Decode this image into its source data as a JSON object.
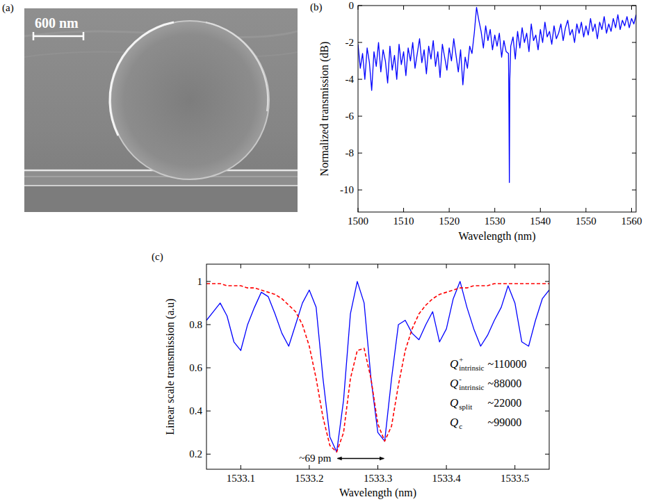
{
  "image": {
    "panel_label": "(a)",
    "scale_bar": "600 nm"
  },
  "chart_data": [
    {
      "type": "line",
      "panel_label": "(b)",
      "x_label": "Wavelength (nm)",
      "y_label": "Normalized transmission (dB)",
      "xlim": [
        1500,
        1561
      ],
      "ylim": [
        -11.2,
        0
      ],
      "xticks": [
        1500,
        1510,
        1520,
        1530,
        1540,
        1550,
        1560
      ],
      "yticks": [
        -10,
        -8,
        -6,
        -4,
        -2,
        0
      ],
      "grid": false,
      "x": [
        1500,
        1500.5,
        1501,
        1501.5,
        1502,
        1502.5,
        1503,
        1503.5,
        1504,
        1504.5,
        1505,
        1505.5,
        1506,
        1506.5,
        1507,
        1507.5,
        1508,
        1508.5,
        1509,
        1509.5,
        1510,
        1510.5,
        1511,
        1511.5,
        1512,
        1512.5,
        1513,
        1513.5,
        1514,
        1514.5,
        1515,
        1515.5,
        1516,
        1516.5,
        1517,
        1517.5,
        1518,
        1518.5,
        1519,
        1519.5,
        1520,
        1520.5,
        1521,
        1521.5,
        1522,
        1522.5,
        1523,
        1523.5,
        1524,
        1524.5,
        1525,
        1525.5,
        1526,
        1526.5,
        1527,
        1527.5,
        1528,
        1528.5,
        1529,
        1529.5,
        1530,
        1530.5,
        1531,
        1531.5,
        1532,
        1532.5,
        1533,
        1533.1,
        1533.2,
        1533.3,
        1533.5,
        1534,
        1534.5,
        1535,
        1535.5,
        1536,
        1536.5,
        1537,
        1537.5,
        1538,
        1538.5,
        1539,
        1539.5,
        1540,
        1540.5,
        1541,
        1541.5,
        1542,
        1542.5,
        1543,
        1543.5,
        1544,
        1544.5,
        1545,
        1545.5,
        1546,
        1546.5,
        1547,
        1547.5,
        1548,
        1548.5,
        1549,
        1549.5,
        1550,
        1550.5,
        1551,
        1551.5,
        1552,
        1552.5,
        1553,
        1553.5,
        1554,
        1554.5,
        1555,
        1555.5,
        1556,
        1556.5,
        1557,
        1557.5,
        1558,
        1558.5,
        1559,
        1559.5,
        1560,
        1560.5,
        1561
      ],
      "series": [
        {
          "color": "#0000ff",
          "line_style": "solid",
          "values": [
            -2.1,
            -3.4,
            -2.6,
            -4.0,
            -2.3,
            -3.1,
            -4.6,
            -2.5,
            -3.3,
            -2.0,
            -3.6,
            -2.4,
            -3.0,
            -4.2,
            -2.2,
            -3.5,
            -2.7,
            -4.0,
            -2.1,
            -3.2,
            -2.5,
            -3.8,
            -2.3,
            -3.0,
            -2.0,
            -3.4,
            -2.6,
            -1.8,
            -3.1,
            -2.4,
            -3.7,
            -2.2,
            -2.9,
            -1.9,
            -3.3,
            -2.5,
            -3.9,
            -2.1,
            -2.8,
            -3.5,
            -2.3,
            -3.0,
            -1.8,
            -2.7,
            -3.6,
            -2.4,
            -4.3,
            -2.8,
            -3.4,
            -2.2,
            -2.6,
            -1.5,
            -0.1,
            -0.8,
            -1.4,
            -2.3,
            -1.1,
            -1.9,
            -1.3,
            -2.4,
            -1.6,
            -2.2,
            -1.5,
            -2.8,
            -1.9,
            -2.5,
            -2.6,
            -5.3,
            -9.6,
            -4.0,
            -2.2,
            -1.7,
            -2.9,
            -1.4,
            -2.3,
            -1.2,
            -2.0,
            -1.5,
            -2.5,
            -1.0,
            -1.9,
            -1.6,
            -2.4,
            -1.3,
            -2.0,
            -0.9,
            -1.7,
            -1.4,
            -2.1,
            -1.1,
            -1.8,
            -1.5,
            -1.0,
            -1.9,
            -1.2,
            -0.8,
            -1.6,
            -1.3,
            -2.0,
            -1.0,
            -1.5,
            -0.9,
            -1.7,
            -1.1,
            -1.6,
            -0.7,
            -1.4,
            -1.0,
            -1.8,
            -0.9,
            -1.3,
            -0.6,
            -1.5,
            -1.0,
            -1.4,
            -0.7,
            -1.2,
            -0.5,
            -1.3,
            -0.8,
            -1.1,
            -0.6,
            -1.2,
            -0.7,
            -1.0,
            -0.5
          ]
        }
      ]
    },
    {
      "type": "line",
      "panel_label": "(c)",
      "x_label": "Wavelength (nm)",
      "y_label": "Linear scale transmission (a.u)",
      "xlim": [
        1533.05,
        1533.55
      ],
      "ylim": [
        0.13,
        1.08
      ],
      "xticks": [
        1533.1,
        1533.2,
        1533.3,
        1533.4,
        1533.5
      ],
      "yticks": [
        0.2,
        0.4,
        0.6,
        0.8,
        1
      ],
      "grid": false,
      "x": [
        1533.05,
        1533.06,
        1533.07,
        1533.08,
        1533.09,
        1533.1,
        1533.11,
        1533.12,
        1533.13,
        1533.14,
        1533.15,
        1533.16,
        1533.17,
        1533.18,
        1533.19,
        1533.2,
        1533.21,
        1533.22,
        1533.23,
        1533.24,
        1533.25,
        1533.26,
        1533.27,
        1533.28,
        1533.29,
        1533.3,
        1533.31,
        1533.32,
        1533.33,
        1533.34,
        1533.35,
        1533.36,
        1533.37,
        1533.38,
        1533.39,
        1533.4,
        1533.41,
        1533.42,
        1533.43,
        1533.44,
        1533.45,
        1533.46,
        1533.47,
        1533.48,
        1533.49,
        1533.5,
        1533.51,
        1533.52,
        1533.53,
        1533.54,
        1533.55
      ],
      "series": [
        {
          "color": "#0000ff",
          "line_style": "solid",
          "values": [
            0.82,
            0.86,
            0.9,
            0.84,
            0.72,
            0.68,
            0.8,
            0.88,
            0.95,
            0.93,
            0.85,
            0.76,
            0.7,
            0.8,
            0.9,
            0.96,
            0.88,
            0.55,
            0.28,
            0.21,
            0.45,
            0.85,
            1.0,
            0.9,
            0.55,
            0.3,
            0.26,
            0.55,
            0.8,
            0.82,
            0.76,
            0.73,
            0.8,
            0.86,
            0.72,
            0.78,
            0.92,
            1.0,
            0.88,
            0.78,
            0.7,
            0.75,
            0.82,
            0.88,
            0.98,
            0.9,
            0.72,
            0.7,
            0.82,
            0.92,
            0.96
          ]
        },
        {
          "color": "#ff0000",
          "line_style": "dashed",
          "values": [
            0.99,
            0.99,
            0.99,
            0.98,
            0.98,
            0.98,
            0.97,
            0.97,
            0.96,
            0.95,
            0.94,
            0.92,
            0.89,
            0.86,
            0.8,
            0.7,
            0.55,
            0.37,
            0.24,
            0.21,
            0.3,
            0.55,
            0.68,
            0.69,
            0.55,
            0.34,
            0.26,
            0.33,
            0.52,
            0.68,
            0.78,
            0.85,
            0.89,
            0.92,
            0.94,
            0.95,
            0.96,
            0.97,
            0.97,
            0.98,
            0.98,
            0.98,
            0.99,
            0.99,
            0.99,
            0.99,
            0.99,
            0.99,
            0.99,
            0.99,
            0.99
          ]
        }
      ],
      "annotations": [
        {
          "text": "~69 pm",
          "x": [
            1533.24,
            1533.31
          ],
          "y": 0.18
        }
      ],
      "q_factors": [
        {
          "symbol": "Q",
          "sup": "+",
          "sub": "intrinsic",
          "value": "~110000"
        },
        {
          "symbol": "Q",
          "sup": "-",
          "sub": "intrinsic",
          "value": "~88000"
        },
        {
          "symbol": "Q",
          "sub": "split",
          "value": "~22000"
        },
        {
          "symbol": "Q",
          "sub": "c",
          "value": "~99000"
        }
      ]
    }
  ]
}
